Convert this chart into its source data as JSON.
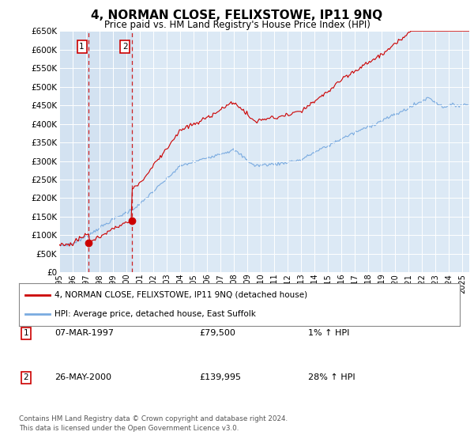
{
  "title": "4, NORMAN CLOSE, FELIXSTOWE, IP11 9NQ",
  "subtitle": "Price paid vs. HM Land Registry's House Price Index (HPI)",
  "legend_line1": "4, NORMAN CLOSE, FELIXSTOWE, IP11 9NQ (detached house)",
  "legend_line2": "HPI: Average price, detached house, East Suffolk",
  "table_rows": [
    {
      "num": "1",
      "date": "07-MAR-1997",
      "price": "£79,500",
      "change": "1% ↑ HPI"
    },
    {
      "num": "2",
      "date": "26-MAY-2000",
      "price": "£139,995",
      "change": "28% ↑ HPI"
    }
  ],
  "footer": "Contains HM Land Registry data © Crown copyright and database right 2024.\nThis data is licensed under the Open Government Licence v3.0.",
  "sale1_year": 1997.18,
  "sale1_price": 79500,
  "sale2_year": 2000.4,
  "sale2_price": 139995,
  "ylim": [
    0,
    650000
  ],
  "xlim_start": 1995.0,
  "xlim_end": 2025.5,
  "bg_color": "#dce9f5",
  "grid_color": "#ffffff",
  "sale_color": "#cc0000",
  "hpi_color": "#7aabe0",
  "vline_color": "#cc0000",
  "box1_shade": "#ccddef"
}
